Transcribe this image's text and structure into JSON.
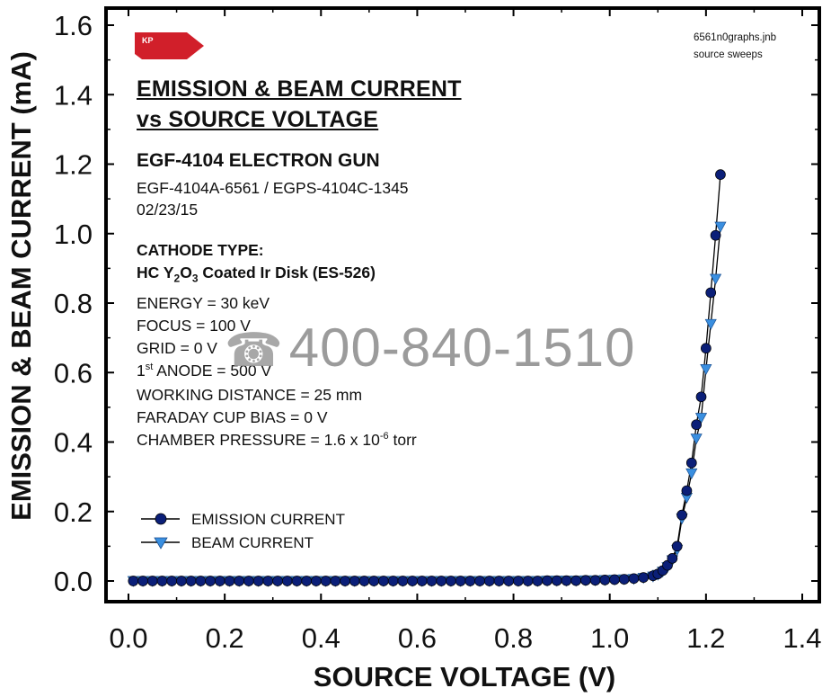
{
  "chart_data": {
    "type": "scatter",
    "title": "EMISSION & BEAM CURRENT vs SOURCE VOLTAGE",
    "xlabel": "SOURCE VOLTAGE (V)",
    "ylabel": "EMISSION & BEAM CURRENT (mA)",
    "xlim": [
      -0.05,
      1.4
    ],
    "ylim": [
      -0.05,
      1.65
    ],
    "xticks": [
      "0.0",
      "0.2",
      "0.4",
      "0.6",
      "0.8",
      "1.0",
      "1.2",
      "1.4"
    ],
    "yticks": [
      "0.0",
      "0.2",
      "0.4",
      "0.6",
      "0.8",
      "1.0",
      "1.2",
      "1.4",
      "1.6"
    ],
    "grid": false,
    "legend_position": "bottom-left",
    "series": [
      {
        "name": "EMISSION CURRENT",
        "marker": "circle",
        "color": "#0b1f78",
        "x": [
          0.01,
          0.03,
          0.05,
          0.07,
          0.09,
          0.11,
          0.13,
          0.15,
          0.17,
          0.19,
          0.21,
          0.23,
          0.25,
          0.27,
          0.29,
          0.31,
          0.33,
          0.35,
          0.37,
          0.39,
          0.41,
          0.43,
          0.45,
          0.47,
          0.49,
          0.51,
          0.53,
          0.55,
          0.57,
          0.59,
          0.61,
          0.63,
          0.65,
          0.67,
          0.69,
          0.71,
          0.73,
          0.75,
          0.77,
          0.79,
          0.81,
          0.83,
          0.85,
          0.87,
          0.89,
          0.91,
          0.93,
          0.95,
          0.97,
          0.99,
          1.01,
          1.03,
          1.05,
          1.07,
          1.09,
          1.1,
          1.11,
          1.12,
          1.13,
          1.14,
          1.15,
          1.16,
          1.17,
          1.18,
          1.19,
          1.2,
          1.21,
          1.22,
          1.23
        ],
        "y": [
          0,
          0,
          0,
          0,
          0,
          0,
          0,
          0,
          0,
          0,
          0,
          0,
          0,
          0,
          0,
          0,
          0,
          0,
          0,
          0,
          0,
          0,
          0,
          0,
          0,
          0,
          0,
          0,
          0,
          0,
          0,
          0,
          0,
          0,
          0,
          0,
          0,
          0,
          0,
          0,
          0,
          0,
          0,
          0.001,
          0.001,
          0.001,
          0.001,
          0.002,
          0.002,
          0.003,
          0.004,
          0.005,
          0.007,
          0.01,
          0.015,
          0.02,
          0.03,
          0.045,
          0.065,
          0.1,
          0.19,
          0.26,
          0.34,
          0.45,
          0.53,
          0.67,
          0.83,
          0.995,
          1.17
        ]
      },
      {
        "name": "BEAM CURRENT",
        "marker": "triangle-down",
        "color": "#3a8fe0",
        "x": [
          0.01,
          0.03,
          0.05,
          0.07,
          0.09,
          0.11,
          0.13,
          0.15,
          0.17,
          0.19,
          0.21,
          0.23,
          0.25,
          0.27,
          0.29,
          0.31,
          0.33,
          0.35,
          0.37,
          0.39,
          0.41,
          0.43,
          0.45,
          0.47,
          0.49,
          0.51,
          0.53,
          0.55,
          0.57,
          0.59,
          0.61,
          0.63,
          0.65,
          0.67,
          0.69,
          0.71,
          0.73,
          0.75,
          0.77,
          0.79,
          0.81,
          0.83,
          0.85,
          0.87,
          0.89,
          0.91,
          0.93,
          0.95,
          0.97,
          0.99,
          1.01,
          1.03,
          1.05,
          1.07,
          1.09,
          1.1,
          1.11,
          1.12,
          1.13,
          1.14,
          1.15,
          1.16,
          1.17,
          1.18,
          1.19,
          1.2,
          1.21,
          1.22,
          1.23
        ],
        "y": [
          0,
          0,
          0,
          0,
          0,
          0,
          0,
          0,
          0,
          0,
          0,
          0,
          0,
          0,
          0,
          0,
          0,
          0,
          0,
          0,
          0,
          0,
          0,
          0,
          0,
          0,
          0,
          0,
          0,
          0,
          0,
          0,
          0,
          0,
          0,
          0,
          0,
          0,
          0,
          0,
          0,
          0,
          0,
          0.001,
          0.001,
          0.001,
          0.001,
          0.002,
          0.002,
          0.003,
          0.004,
          0.005,
          0.006,
          0.009,
          0.013,
          0.018,
          0.027,
          0.04,
          0.06,
          0.09,
          0.18,
          0.24,
          0.31,
          0.41,
          0.47,
          0.61,
          0.74,
          0.87,
          1.02
        ]
      }
    ]
  },
  "title_lines": [
    "EMISSION & BEAM CURRENT",
    "vs SOURCE VOLTAGE"
  ],
  "logo_text": "KP",
  "corner_note": [
    "6561n0graphs.jnb",
    "source sweeps"
  ],
  "gun_title": "EGF-4104 ELECTRON GUN",
  "gun_models": "EGF-4104A-6561 / EGPS-4104C-1345",
  "date": "02/23/15",
  "cathode_label": "CATHODE TYPE:",
  "cathode_type": {
    "pre": "HC Y",
    "sub1": "2",
    "mid": "O",
    "sub2": "3",
    "post": " Coated Ir Disk (ES-526)"
  },
  "params": {
    "energy": "ENERGY = 30 keV",
    "focus": "FOCUS = 100 V",
    "grid": "GRID = 0 V",
    "anode_pre": "1",
    "anode_sup": "st",
    "anode_post": " ANODE = 500 V",
    "working_distance": "WORKING DISTANCE = 25 mm",
    "faraday": "FARADAY CUP BIAS = 0 V",
    "pressure_pre": "CHAMBER PRESSURE = 1.6 x 10",
    "pressure_sup": "-6",
    "pressure_post": " torr"
  },
  "watermark": "400-840-1510"
}
